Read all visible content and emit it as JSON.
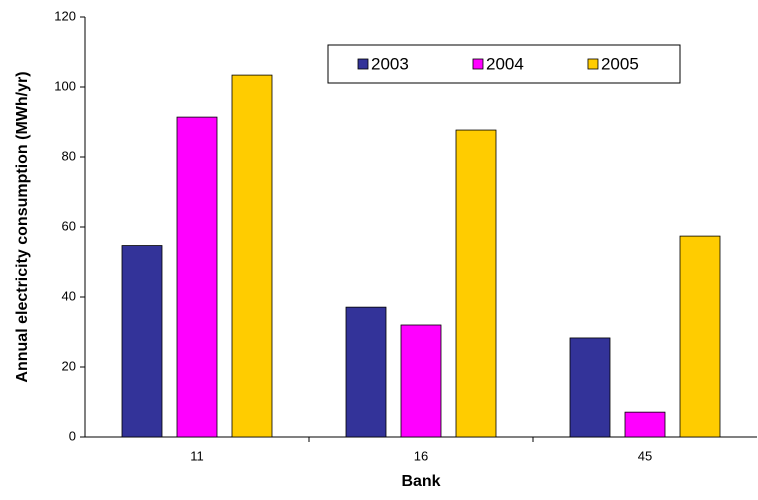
{
  "chart_data": {
    "type": "bar",
    "x_label": "Bank",
    "y_label": "Annual electricity consumption (MWh/yr)",
    "categories": [
      "11",
      "16",
      "45"
    ],
    "series": [
      {
        "name": "2003",
        "color": "#333399",
        "values": [
          54.7,
          37.1,
          28.3
        ]
      },
      {
        "name": "2004",
        "color": "#ff00ff",
        "values": [
          91.4,
          32,
          7.1
        ]
      },
      {
        "name": "2005",
        "color": "#ffcc00",
        "values": [
          103.4,
          87.7,
          57.4
        ]
      }
    ],
    "ylim": [
      0,
      120
    ],
    "yticks": [
      0,
      20,
      40,
      60,
      80,
      100,
      120
    ],
    "legend": "top-right",
    "grid": false
  }
}
